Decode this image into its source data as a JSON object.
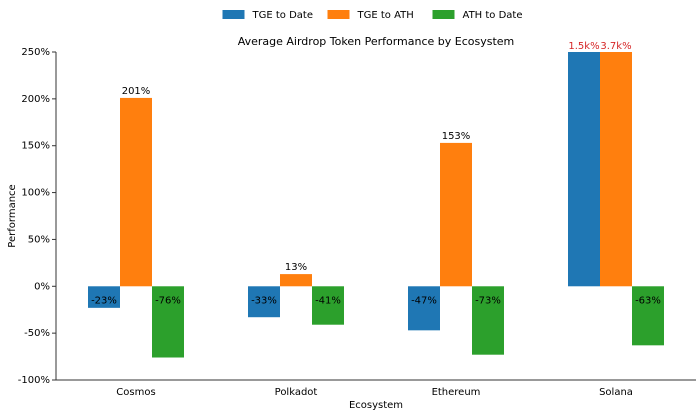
{
  "chart_data": {
    "type": "bar",
    "title": "Average Airdrop Token Performance by Ecosystem",
    "x_label": "Ecosystem",
    "y_label": "Performance",
    "categories": [
      "Cosmos",
      "Polkadot",
      "Ethereum",
      "Solana"
    ],
    "series": [
      {
        "name": "TGE to Date",
        "color": "#1f77b4",
        "values": [
          -23,
          -33,
          -47,
          1500
        ],
        "value_labels": [
          "-23%",
          "-33%",
          "-47%",
          "1.5k%"
        ]
      },
      {
        "name": "TGE to ATH",
        "color": "#ff7f0e",
        "values": [
          201,
          13,
          153,
          3700
        ],
        "value_labels": [
          "201%",
          "13%",
          "153%",
          "3.7k%"
        ]
      },
      {
        "name": "ATH to Date",
        "color": "#2ca02c",
        "values": [
          -76,
          -41,
          -73,
          -63
        ],
        "value_labels": [
          "-76%",
          "-41%",
          "-73%",
          "-63%"
        ]
      }
    ],
    "ylim": [
      -100,
      250
    ],
    "yticks": [
      {
        "value": -100,
        "label": "-100%"
      },
      {
        "value": -50,
        "label": "-50%"
      },
      {
        "value": 0,
        "label": "0%"
      },
      {
        "value": 50,
        "label": "50%"
      },
      {
        "value": 100,
        "label": "100%"
      },
      {
        "value": 150,
        "label": "150%"
      },
      {
        "value": 200,
        "label": "200%"
      },
      {
        "value": 250,
        "label": "250%"
      }
    ],
    "legend": "top"
  }
}
